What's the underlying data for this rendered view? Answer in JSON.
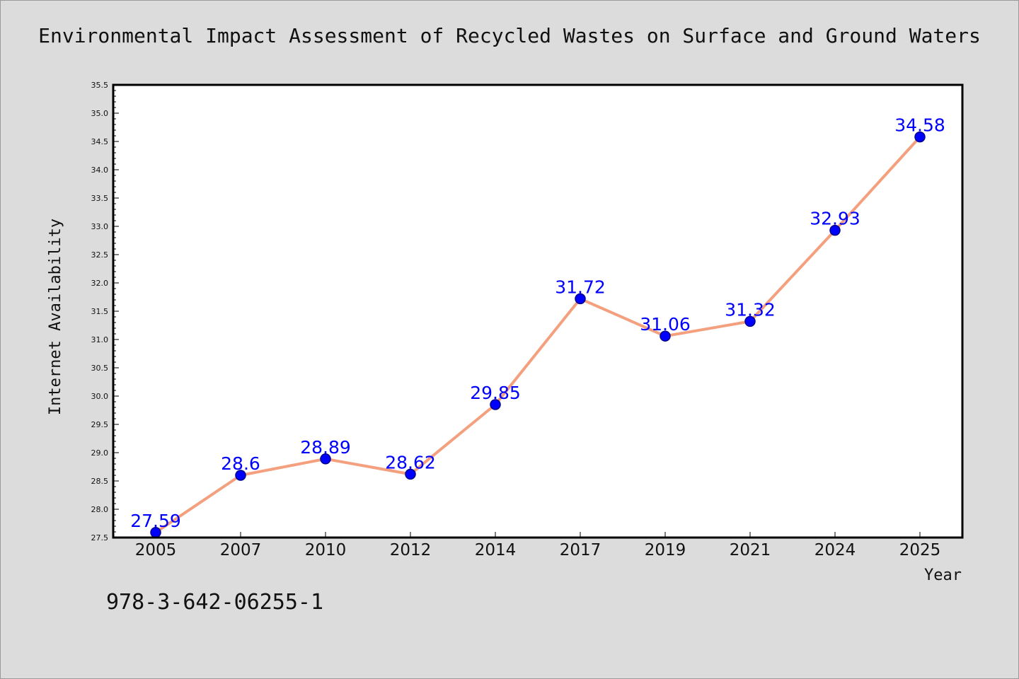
{
  "title": "Environmental Impact Assessment of Recycled Wastes on Surface and Ground Waters",
  "footer_code": "978-3-642-06255-1",
  "chart_data": {
    "type": "line",
    "title": "Environmental Impact Assessment of Recycled Wastes on Surface and Ground Waters",
    "xlabel": "Year",
    "ylabel": "Internet Availability",
    "categories": [
      "2005",
      "2007",
      "2010",
      "2012",
      "2014",
      "2017",
      "2019",
      "2021",
      "2024",
      "2025"
    ],
    "series": [
      {
        "values": [
          27.59,
          28.6,
          28.89,
          28.62,
          29.85,
          31.72,
          31.06,
          31.32,
          32.93,
          34.58
        ],
        "data_labels": [
          "27.59",
          "28.6",
          "28.89",
          "28.62",
          "29.85",
          "31.72",
          "31.06",
          "31.32",
          "32.93",
          "34.58"
        ]
      }
    ],
    "ylim": [
      27.5,
      35.5
    ],
    "yticks": [
      "27.5",
      "28.0",
      "28.5",
      "29.0",
      "29.5",
      "30.0",
      "30.5",
      "31.0",
      "31.5",
      "32.0",
      "32.5",
      "33.0",
      "33.5",
      "34.0",
      "34.5",
      "35.0",
      "35.5"
    ],
    "grid": false,
    "legend": "none",
    "colors": {
      "line": "#f4a07f",
      "marker": "#0000ff",
      "marker_edge": "#00008b",
      "data_label": "#0000ff",
      "background": "#dcdcdc",
      "plot_area": "#ffffff"
    }
  }
}
